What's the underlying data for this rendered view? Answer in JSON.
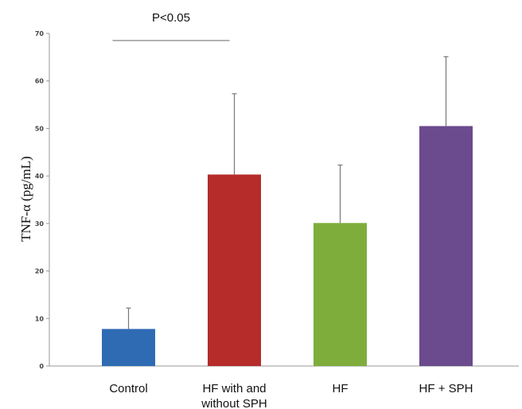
{
  "chart_data": {
    "type": "bar",
    "categories": [
      "Control",
      "HF with and without SPH",
      "HF",
      "HF + SPH"
    ],
    "category_lines": [
      [
        "Control"
      ],
      [
        "HF with and",
        "without SPH"
      ],
      [
        "HF"
      ],
      [
        "HF + SPH"
      ]
    ],
    "values": [
      7.8,
      40.3,
      30.1,
      50.5
    ],
    "error_upper": [
      12.2,
      57.3,
      42.3,
      65.1
    ],
    "colors": [
      "#2e6bb3",
      "#b52c2b",
      "#7fad3c",
      "#6b4a8e"
    ],
    "ylabel": "TNF-α (pg/mL)",
    "xlabel": "",
    "ylim": [
      0,
      70
    ],
    "yticks": [
      0,
      10,
      20,
      30,
      40,
      50,
      60,
      70
    ],
    "grid": false,
    "annotation": {
      "text": "P<0.05",
      "y_value": 68.5,
      "from_category": 0,
      "to_category": 1
    }
  }
}
